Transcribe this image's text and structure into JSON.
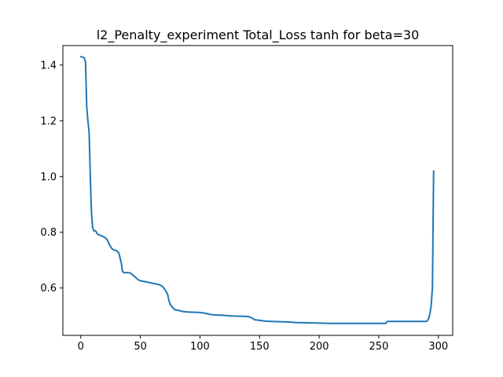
{
  "chart_data": {
    "type": "line",
    "title": "l2_Penalty_experiment Total_Loss tanh for beta=30",
    "xlabel": "",
    "ylabel": "",
    "xlim": [
      -15,
      312
    ],
    "ylim": [
      0.43,
      1.47
    ],
    "xticks": [
      0,
      50,
      100,
      150,
      200,
      250,
      300
    ],
    "xtick_labels": [
      "0",
      "50",
      "100",
      "150",
      "200",
      "250",
      "300"
    ],
    "yticks": [
      0.6,
      0.8,
      1.0,
      1.2,
      1.4
    ],
    "ytick_labels": [
      "0.6",
      "0.8",
      "1.0",
      "1.2",
      "1.4"
    ],
    "grid": false,
    "legend": "none",
    "series": [
      {
        "color": "#1f77b4",
        "points": [
          [
            0,
            1.43
          ],
          [
            2,
            1.428
          ],
          [
            3,
            1.425
          ],
          [
            4,
            1.41
          ],
          [
            5,
            1.25
          ],
          [
            6,
            1.2
          ],
          [
            7,
            1.16
          ],
          [
            8,
            1.0
          ],
          [
            9,
            0.87
          ],
          [
            10,
            0.815
          ],
          [
            11,
            0.805
          ],
          [
            12,
            0.806
          ],
          [
            13,
            0.802
          ],
          [
            14,
            0.793
          ],
          [
            16,
            0.79
          ],
          [
            18,
            0.786
          ],
          [
            20,
            0.782
          ],
          [
            22,
            0.775
          ],
          [
            24,
            0.756
          ],
          [
            26,
            0.742
          ],
          [
            28,
            0.736
          ],
          [
            30,
            0.734
          ],
          [
            32,
            0.725
          ],
          [
            34,
            0.69
          ],
          [
            35,
            0.66
          ],
          [
            36,
            0.655
          ],
          [
            40,
            0.655
          ],
          [
            42,
            0.653
          ],
          [
            44,
            0.645
          ],
          [
            46,
            0.638
          ],
          [
            48,
            0.63
          ],
          [
            50,
            0.626
          ],
          [
            55,
            0.622
          ],
          [
            60,
            0.617
          ],
          [
            65,
            0.613
          ],
          [
            68,
            0.608
          ],
          [
            70,
            0.598
          ],
          [
            72,
            0.585
          ],
          [
            73,
            0.575
          ],
          [
            74,
            0.555
          ],
          [
            75,
            0.542
          ],
          [
            77,
            0.53
          ],
          [
            79,
            0.522
          ],
          [
            82,
            0.52
          ],
          [
            85,
            0.516
          ],
          [
            90,
            0.514
          ],
          [
            100,
            0.512
          ],
          [
            105,
            0.509
          ],
          [
            110,
            0.504
          ],
          [
            120,
            0.502
          ],
          [
            125,
            0.5
          ],
          [
            130,
            0.499
          ],
          [
            140,
            0.498
          ],
          [
            143,
            0.494
          ],
          [
            146,
            0.486
          ],
          [
            150,
            0.484
          ],
          [
            155,
            0.481
          ],
          [
            160,
            0.48
          ],
          [
            175,
            0.478
          ],
          [
            180,
            0.476
          ],
          [
            200,
            0.474
          ],
          [
            210,
            0.473
          ],
          [
            230,
            0.473
          ],
          [
            240,
            0.473
          ],
          [
            256,
            0.473
          ],
          [
            257,
            0.48
          ],
          [
            260,
            0.48
          ],
          [
            280,
            0.48
          ],
          [
            290,
            0.48
          ],
          [
            291,
            0.484
          ],
          [
            292,
            0.492
          ],
          [
            293,
            0.51
          ],
          [
            294,
            0.54
          ],
          [
            295,
            0.6
          ],
          [
            296,
            1.02
          ]
        ]
      }
    ]
  }
}
